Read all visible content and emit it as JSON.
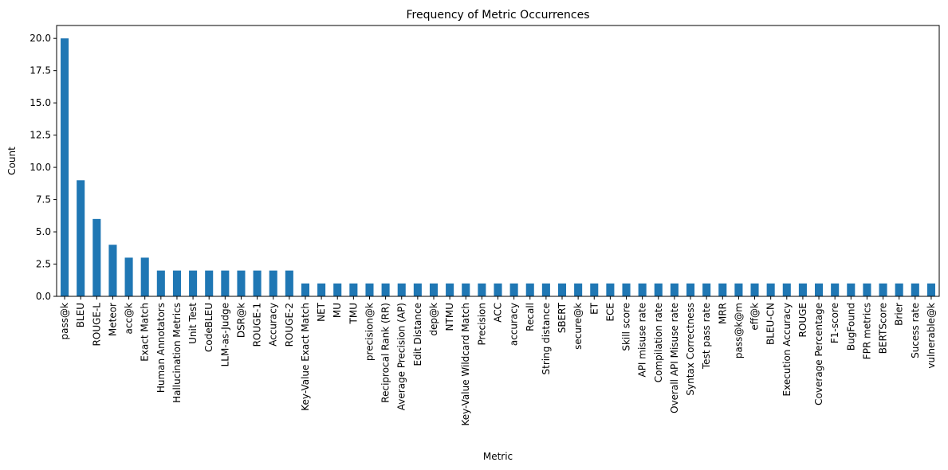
{
  "chart_data": {
    "type": "bar",
    "title": "Frequency of Metric Occurrences",
    "xlabel": "Metric",
    "ylabel": "Count",
    "ylim": [
      0,
      21
    ],
    "yticks": [
      "0.0",
      "2.5",
      "5.0",
      "7.5",
      "10.0",
      "12.5",
      "15.0",
      "17.5",
      "20.0"
    ],
    "grid": false,
    "bar_color": "#1f77b4",
    "categories": [
      "pass@k",
      "BLEU",
      "ROUGE-L",
      "Meteor",
      "acc@k",
      "Exact Match",
      "Human Annotators",
      "Hallucination Metrics",
      "Unit Test",
      "CodeBLEU",
      "LLM-as-Judge",
      "DSR@k",
      "ROUGE-1",
      "Accuracy",
      "ROUGE-2",
      "Key-Value Exact Match",
      "NET",
      "MU",
      "TMU",
      "precision@k",
      "Reciprocal Rank (RR)",
      "Average Precision (AP)",
      "Edit Distance",
      "dep@k",
      "NTMU",
      "Key-Value Wildcard Match",
      "Precision",
      "ACC",
      "accuracy",
      "Recall",
      "String distance",
      "SBERT",
      "secure@k",
      "ET",
      "ECE",
      "Skill score",
      "API misuse rate",
      "Compilation rate",
      "Overall API Misuse rate",
      "Syntax Correctness",
      "Test pass rate",
      "MRR",
      "pass@k@m",
      "eff@k",
      "BLEU-CN",
      "Execution Accuracy",
      "ROUGE",
      "Coverage Percentage",
      "F1-score",
      "BugFound",
      "FPR metrics",
      "BERTScore",
      "Brier",
      "Sucess rate",
      "vulnerable@k"
    ],
    "values": [
      20,
      9,
      6,
      4,
      3,
      3,
      2,
      2,
      2,
      2,
      2,
      2,
      2,
      2,
      2,
      1,
      1,
      1,
      1,
      1,
      1,
      1,
      1,
      1,
      1,
      1,
      1,
      1,
      1,
      1,
      1,
      1,
      1,
      1,
      1,
      1,
      1,
      1,
      1,
      1,
      1,
      1,
      1,
      1,
      1,
      1,
      1,
      1,
      1,
      1,
      1,
      1,
      1,
      1,
      1
    ]
  }
}
